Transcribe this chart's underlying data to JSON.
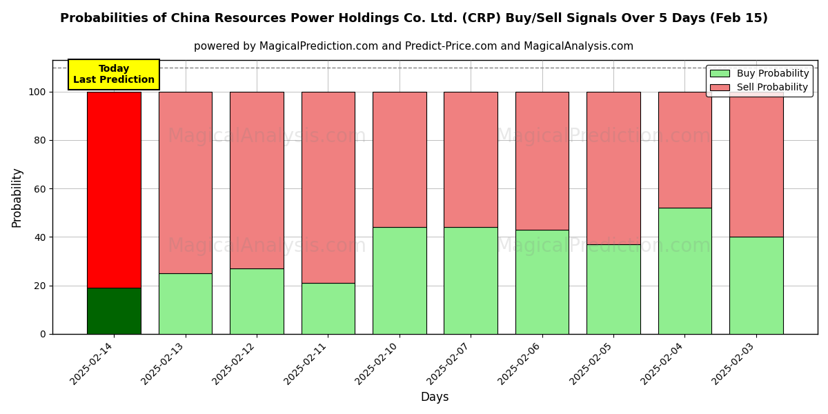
{
  "title": "Probabilities of China Resources Power Holdings Co. Ltd. (CRP) Buy/Sell Signals Over 5 Days (Feb 15)",
  "subtitle": "powered by MagicalPrediction.com and Predict-Price.com and MagicalAnalysis.com",
  "xlabel": "Days",
  "ylabel": "Probability",
  "dates": [
    "2025-02-14",
    "2025-02-13",
    "2025-02-12",
    "2025-02-11",
    "2025-02-10",
    "2025-02-07",
    "2025-02-06",
    "2025-02-05",
    "2025-02-04",
    "2025-02-03"
  ],
  "buy_values": [
    19,
    25,
    27,
    21,
    44,
    44,
    43,
    37,
    52,
    40
  ],
  "sell_values": [
    81,
    75,
    73,
    79,
    56,
    56,
    57,
    63,
    48,
    60
  ],
  "today_buy_color": "#006400",
  "today_sell_color": "#ff0000",
  "normal_buy_color": "#90ee90",
  "normal_sell_color": "#f08080",
  "bar_edge_color": "#000000",
  "ylim_max": 113,
  "yticks": [
    0,
    20,
    40,
    60,
    80,
    100
  ],
  "dashed_line_y": 110,
  "legend_buy_color": "#90ee90",
  "legend_sell_color": "#f08080",
  "today_box_color": "#ffff00",
  "today_box_text": "Today\nLast Prediction",
  "background_color": "#ffffff",
  "title_fontsize": 13,
  "subtitle_fontsize": 11,
  "axis_label_fontsize": 12,
  "tick_fontsize": 10,
  "bar_width": 0.75
}
